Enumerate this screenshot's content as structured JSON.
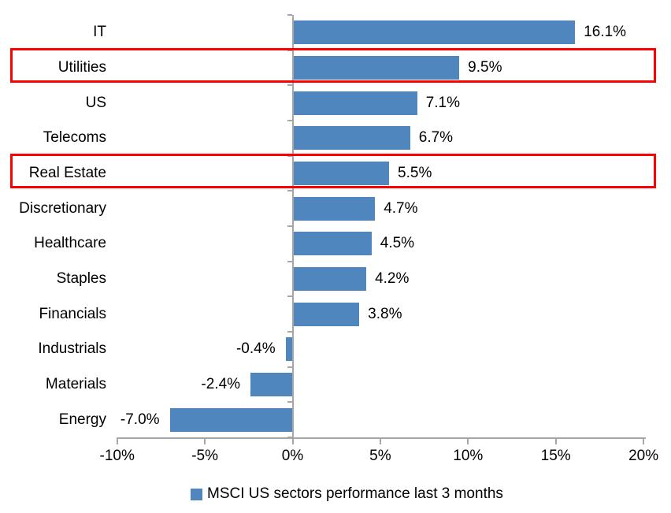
{
  "chart_data": {
    "type": "bar",
    "orientation": "horizontal",
    "title": "",
    "categories": [
      "IT",
      "Utilities",
      "US",
      "Telecoms",
      "Real Estate",
      "Discretionary",
      "Healthcare",
      "Staples",
      "Financials",
      "Industrials",
      "Materials",
      "Energy"
    ],
    "values": [
      16.1,
      9.5,
      7.1,
      6.7,
      5.5,
      4.7,
      4.5,
      4.2,
      3.8,
      -0.4,
      -2.4,
      -7.0
    ],
    "data_labels": [
      "16.1%",
      "9.5%",
      "7.1%",
      "6.7%",
      "5.5%",
      "4.7%",
      "4.5%",
      "4.2%",
      "3.8%",
      "-0.4%",
      "-2.4%",
      "-7.0%"
    ],
    "xlim": [
      -10,
      20
    ],
    "x_tick_values": [
      -10,
      -5,
      0,
      5,
      10,
      15,
      20
    ],
    "x_tick_labels": [
      "-10%",
      "-5%",
      "0%",
      "5%",
      "10%",
      "15%",
      "20%"
    ],
    "grid": false,
    "legend_position": "bottom",
    "legend_label": "MSCI US sectors performance last 3 months",
    "highlighted_categories": [
      "Utilities",
      "Real Estate"
    ],
    "colors": {
      "bar": "#4E86BD",
      "axis": "#A6A6A6",
      "text": "#000000",
      "highlight": "#FF0000",
      "background": "#FFFFFF"
    }
  }
}
